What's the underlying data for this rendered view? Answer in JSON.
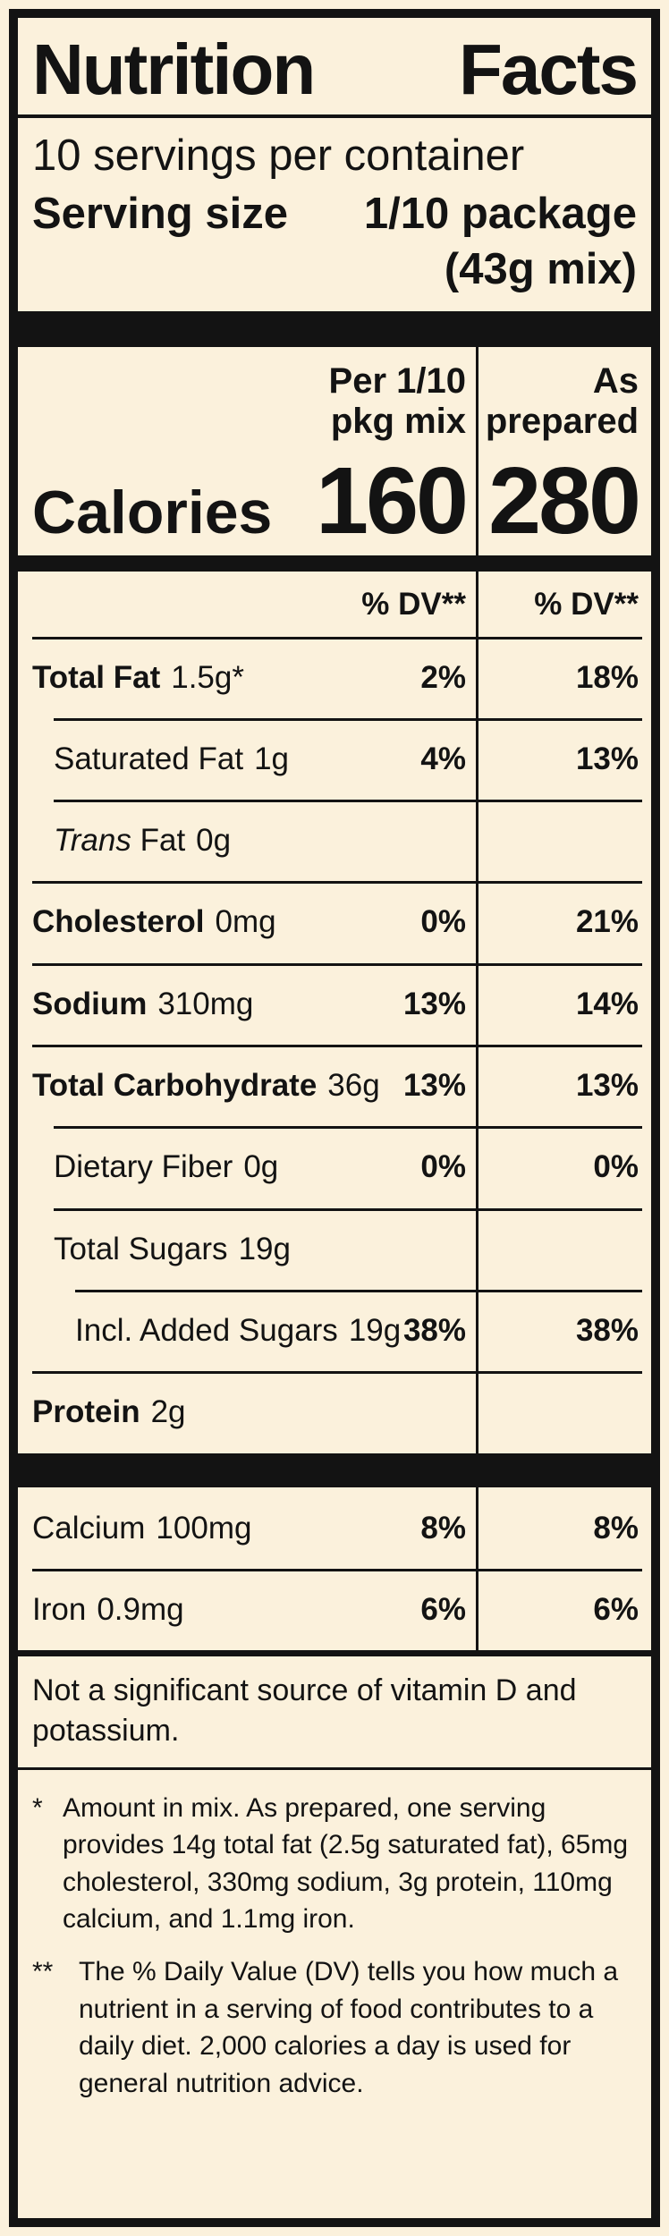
{
  "colors": {
    "background": "#FBF1DC",
    "ink": "#131313"
  },
  "header": {
    "title": "Nutrition Facts",
    "servings_per_container": "10 servings per container",
    "serving_size_label": "Serving size",
    "serving_size_value": "1/10 package\n(43g mix)"
  },
  "columns": {
    "col1_header": "Per 1/10\npkg mix",
    "col2_header": "As\nprepared",
    "dv_header_col1": "% DV**",
    "dv_header_col2": "% DV**"
  },
  "calories": {
    "label": "Calories",
    "per_mix": "160",
    "as_prepared": "280"
  },
  "nutrients": [
    {
      "name": "Total Fat",
      "amount": "1.5g*",
      "dv1": "2%",
      "dv2": "18%",
      "bold": true,
      "indent": 0
    },
    {
      "name": "Saturated Fat",
      "amount": "1g",
      "dv1": "4%",
      "dv2": "13%",
      "bold": false,
      "indent": 1
    },
    {
      "name": "Trans Fat",
      "amount": "0g",
      "dv1": "",
      "dv2": "",
      "bold": false,
      "indent": 1,
      "italic_first_word": true
    },
    {
      "name": "Cholesterol",
      "amount": "0mg",
      "dv1": "0%",
      "dv2": "21%",
      "bold": true,
      "indent": 0
    },
    {
      "name": "Sodium",
      "amount": "310mg",
      "dv1": "13%",
      "dv2": "14%",
      "bold": true,
      "indent": 0
    },
    {
      "name": "Total Carbohydrate",
      "amount": "36g",
      "dv1": "13%",
      "dv2": "13%",
      "bold": true,
      "indent": 0
    },
    {
      "name": "Dietary Fiber",
      "amount": "0g",
      "dv1": "0%",
      "dv2": "0%",
      "bold": false,
      "indent": 1
    },
    {
      "name": "Total Sugars",
      "amount": "19g",
      "dv1": "",
      "dv2": "",
      "bold": false,
      "indent": 1
    },
    {
      "name": "Incl. Added Sugars",
      "amount": "19g",
      "dv1": "38%",
      "dv2": "38%",
      "bold": false,
      "indent": 2
    },
    {
      "name": "Protein",
      "amount": "2g",
      "dv1": "",
      "dv2": "",
      "bold": true,
      "indent": 0
    }
  ],
  "minerals": [
    {
      "name": "Calcium",
      "amount": "100mg",
      "dv1": "8%",
      "dv2": "8%",
      "bold": false,
      "indent": 0,
      "no_topline": true
    },
    {
      "name": "Iron",
      "amount": "0.9mg",
      "dv1": "6%",
      "dv2": "6%",
      "bold": false,
      "indent": 0
    }
  ],
  "notes": {
    "not_significant": "Not a significant source of vitamin D and potassium.",
    "footnote1_marker": "*",
    "footnote1": "Amount in mix. As prepared, one serving provides 14g total fat (2.5g saturated fat), 65mg cholesterol, 330mg sodium, 3g protein, 110mg calcium, and 1.1mg iron.",
    "footnote2_marker": "**",
    "footnote2": "The % Daily Value (DV) tells you how much a nutrient in a serving of food contributes to a daily diet. 2,000 calories a day is used for general nutrition advice."
  }
}
